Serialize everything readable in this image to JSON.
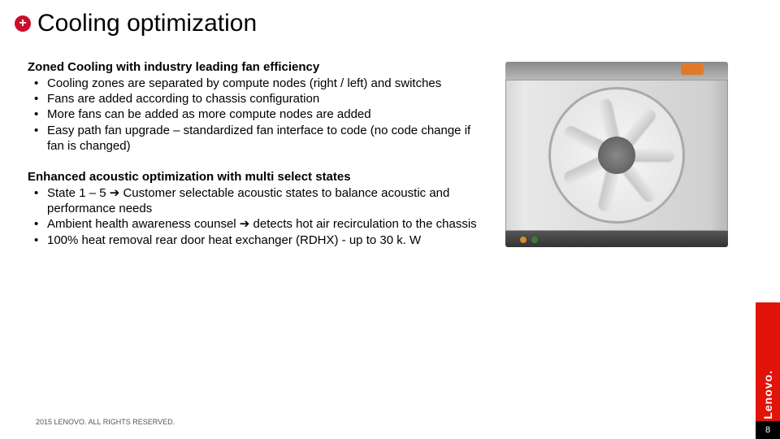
{
  "title": "Cooling optimization",
  "section1": {
    "heading": "Zoned Cooling with industry leading fan efficiency",
    "b1": "Cooling zones are separated by compute nodes (right / left) and switches",
    "b2": "Fans are added according to chassis configuration",
    "b3": "More fans can be added as more compute nodes are added",
    "b4": "Easy path fan upgrade – standardized fan interface to code (no code change if fan is changed)"
  },
  "section2": {
    "heading": "Enhanced acoustic optimization with multi select states",
    "b1": "State 1 – 5 ➔ Customer selectable acoustic states to balance acoustic and performance needs",
    "b2": "Ambient health awareness counsel ➔ detects hot air recirculation to the chassis",
    "b3": "100% heat removal rear door heat exchanger (RDHX) - up to 30 k. W"
  },
  "footer": "2015 LENOVO. ALL RIGHTS RESERVED.",
  "brand": "Lenovo.",
  "page": "8",
  "colors": {
    "accent": "#e1140a",
    "icon_bg": "#c8102e"
  }
}
